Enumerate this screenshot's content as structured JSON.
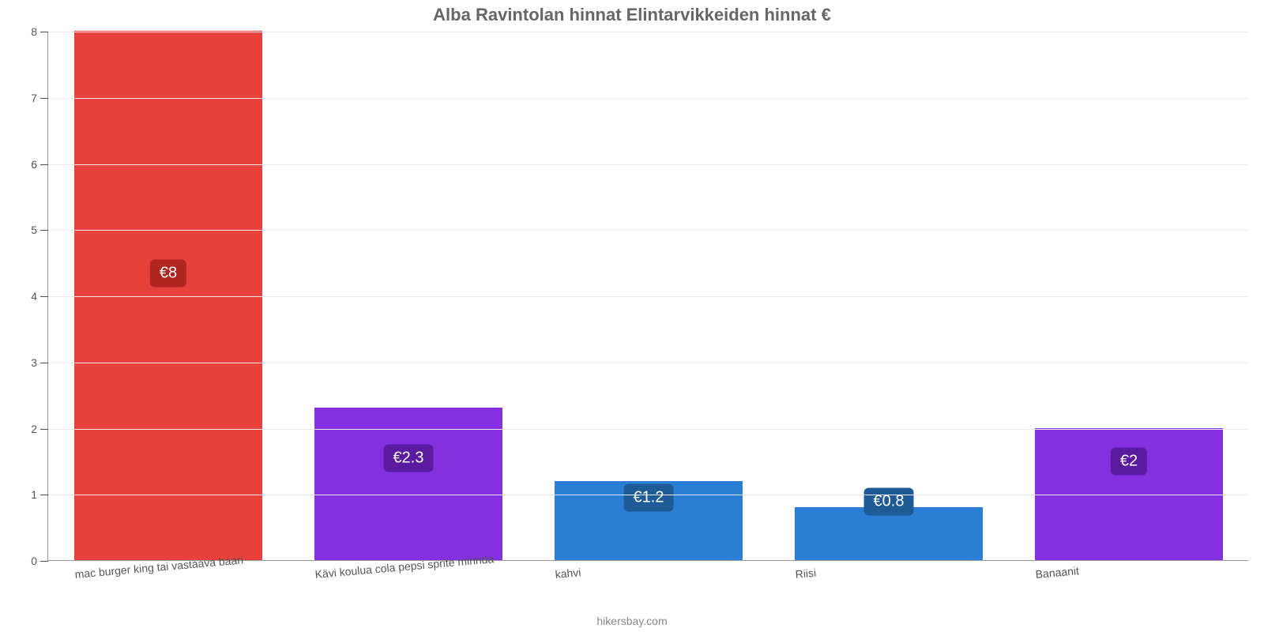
{
  "chart": {
    "type": "bar",
    "title": "Alba Ravintolan hinnat Elintarvikkeiden hinnat €",
    "title_fontsize": 22,
    "title_color": "#666666",
    "credit": "hikersbay.com",
    "credit_fontsize": 14,
    "credit_color": "#888888",
    "background_color": "#ffffff",
    "grid_color": "#e9e9e9",
    "axis_tick_color": "#555555",
    "tick_fontsize": 14,
    "ylim": [
      0,
      8
    ],
    "ytick_step": 1,
    "bar_width": 0.78,
    "xlabel_rotation_deg": -5,
    "xlabel_fontsize": 14,
    "xlabel_color": "#555555",
    "datalabel_fontsize": 20,
    "categories": [
      "mac burger king tai vastaava baari",
      "Kävi koulua cola pepsi sprite mirinda",
      "kahvi",
      "Riisi",
      "Banaanit"
    ],
    "values": [
      8,
      2.3,
      1.2,
      0.8,
      2
    ],
    "value_labels": [
      "€8",
      "€2.3",
      "€1.2",
      "€0.8",
      "€2"
    ],
    "bar_colors": [
      "#e8403a",
      "#842fe0",
      "#2a7fd4",
      "#2a7fd4",
      "#842fe0"
    ],
    "datalabel_bg": [
      "#b12520",
      "#5a1ba0",
      "#1d5a96",
      "#1d5a96",
      "#5a1ba0"
    ],
    "datalabel_y": [
      4.35,
      1.55,
      0.95,
      0.9,
      1.5
    ],
    "yticks": [
      0,
      1,
      2,
      3,
      4,
      5,
      6,
      7,
      8
    ],
    "ytick_labels": [
      "0",
      "1",
      "2",
      "3",
      "4",
      "5",
      "6",
      "7",
      "8"
    ]
  }
}
